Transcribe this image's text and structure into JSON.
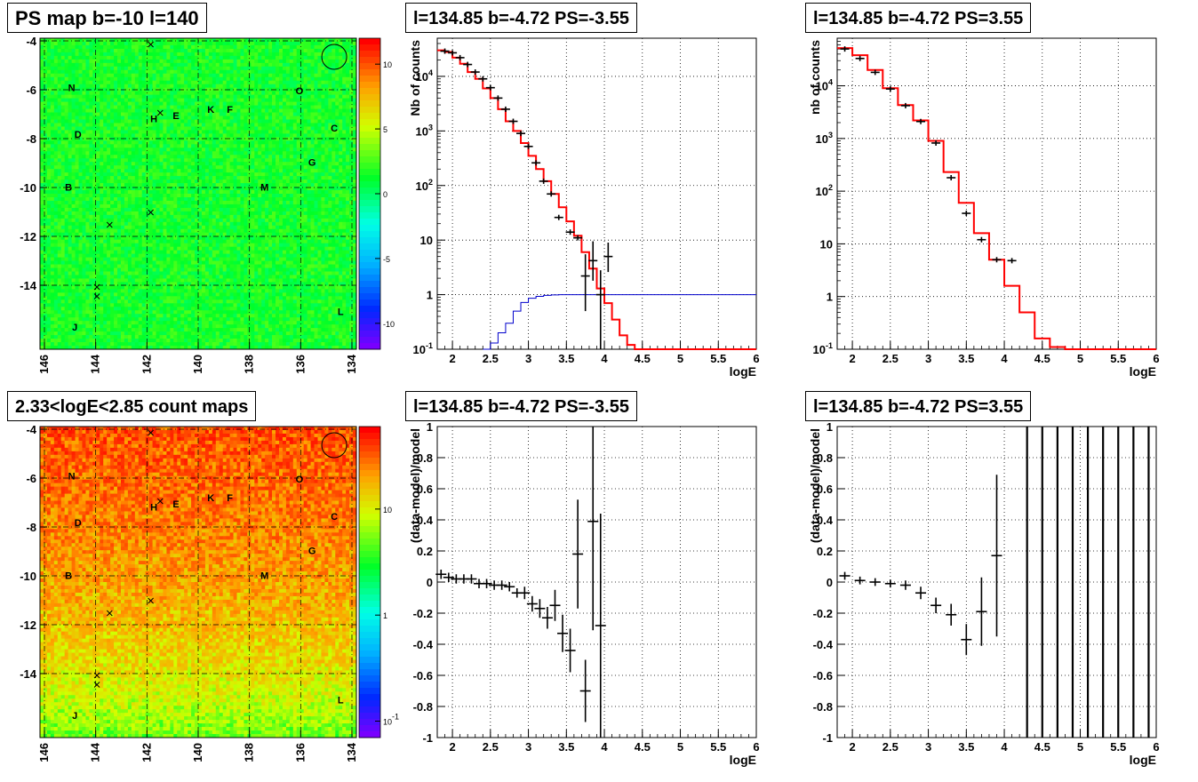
{
  "panels": [
    {
      "id": "ps-map",
      "title": "PS map b=-10 l=140",
      "type": "heatmap",
      "x_ticks": [
        "146",
        "144",
        "142",
        "140",
        "138",
        "136",
        "134"
      ],
      "y_ticks": [
        "-4",
        "-6",
        "-8",
        "-10",
        "-12",
        "-14"
      ],
      "colorbar": {
        "scale": "linear",
        "ticks": [
          "10",
          "5",
          "0",
          "-5",
          "-10"
        ]
      },
      "color_range": [
        -12,
        12
      ],
      "map_level": 1.5,
      "labels": [
        "N",
        "O",
        "H",
        "E",
        "K",
        "F",
        "D",
        "C",
        "G",
        "B",
        "M",
        "L",
        "J"
      ]
    },
    {
      "id": "spectrum-neg",
      "title": "l=134.85 b=-4.72 PS=-3.55",
      "type": "line",
      "xlabel": "logE",
      "ylabel": "Nb of counts",
      "x_ticks": [
        "2",
        "2.5",
        "3",
        "3.5",
        "4",
        "4.5",
        "5",
        "5.5",
        "6"
      ],
      "y_ticks": [
        "10^-1",
        "1",
        "10",
        "10^2",
        "10^3",
        "10^4"
      ],
      "xlim": [
        1.8,
        6
      ],
      "ylim": [
        0.1,
        50000
      ],
      "yscale": "log",
      "chart_data": {
        "type": "line",
        "model_step": {
          "edges": [
            1.8,
            1.9,
            2.0,
            2.1,
            2.2,
            2.3,
            2.4,
            2.5,
            2.6,
            2.7,
            2.8,
            2.9,
            3.0,
            3.1,
            3.2,
            3.3,
            3.4,
            3.5,
            3.6,
            3.7,
            3.8,
            3.9,
            4.0,
            4.1,
            4.2,
            4.3,
            4.4,
            6.0
          ],
          "values": [
            30000,
            28000,
            22000,
            17000,
            12000,
            9000,
            6000,
            4000,
            2500,
            1500,
            1000,
            600,
            350,
            200,
            120,
            70,
            40,
            22,
            12,
            6,
            3,
            1.3,
            0.7,
            0.35,
            0.18,
            0.12,
            0.1
          ]
        },
        "source_model": {
          "edges": [
            2.4,
            2.5,
            2.6,
            2.7,
            2.8,
            2.9,
            3.0,
            3.1,
            3.2,
            3.3,
            3.4,
            3.5,
            6.0
          ],
          "values": [
            0.1,
            0.13,
            0.2,
            0.3,
            0.5,
            0.72,
            0.86,
            0.93,
            0.97,
            0.99,
            1.0,
            1.0
          ]
        },
        "data_points": [
          {
            "x": 1.9,
            "y": 29000
          },
          {
            "x": 2.0,
            "y": 27000
          },
          {
            "x": 2.1,
            "y": 22000
          },
          {
            "x": 2.2,
            "y": 16500
          },
          {
            "x": 2.3,
            "y": 12000
          },
          {
            "x": 2.4,
            "y": 9000
          },
          {
            "x": 2.5,
            "y": 6200
          },
          {
            "x": 2.6,
            "y": 4000
          },
          {
            "x": 2.7,
            "y": 2500
          },
          {
            "x": 2.8,
            "y": 1500
          },
          {
            "x": 2.9,
            "y": 900
          },
          {
            "x": 3.0,
            "y": 520
          },
          {
            "x": 3.1,
            "y": 260
          },
          {
            "x": 3.2,
            "y": 120
          },
          {
            "x": 3.3,
            "y": 70
          },
          {
            "x": 3.4,
            "y": 26
          },
          {
            "x": 3.55,
            "y": 14
          },
          {
            "x": 3.65,
            "y": 11
          },
          {
            "x": 3.75,
            "y": 2.2,
            "lo": 0.5,
            "hi": 5.5
          },
          {
            "x": 3.85,
            "y": 4.2,
            "lo": 1.8,
            "hi": 9.5
          },
          {
            "x": 3.95,
            "y": 1.0,
            "lo": 0.1,
            "hi": 2.8
          },
          {
            "x": 4.05,
            "y": 5.0,
            "lo": 2.6,
            "hi": 9.0
          }
        ]
      }
    },
    {
      "id": "spectrum-pos",
      "title": "l=134.85 b=-4.72 PS=3.55",
      "type": "line",
      "xlabel": "logE",
      "ylabel": "nb of counts",
      "x_ticks": [
        "2",
        "2.5",
        "3",
        "3.5",
        "4",
        "4.5",
        "5",
        "5.5",
        "6"
      ],
      "y_ticks": [
        "10^-1",
        "1",
        "10",
        "10^2",
        "10^3",
        "10^4"
      ],
      "xlim": [
        1.8,
        6
      ],
      "ylim": [
        0.1,
        80000
      ],
      "yscale": "log",
      "chart_data": {
        "type": "line",
        "model_step": {
          "edges": [
            1.8,
            2.0,
            2.2,
            2.4,
            2.6,
            2.8,
            3.0,
            3.2,
            3.4,
            3.6,
            3.8,
            4.0,
            4.2,
            4.4,
            4.6,
            4.8,
            6.0
          ],
          "values": [
            52000,
            38000,
            20000,
            9000,
            4300,
            2200,
            900,
            230,
            60,
            16,
            5,
            1.6,
            0.5,
            0.16,
            0.11,
            0.1
          ]
        },
        "data_points": [
          {
            "x": 1.9,
            "y": 50000
          },
          {
            "x": 2.1,
            "y": 33000
          },
          {
            "x": 2.3,
            "y": 18000
          },
          {
            "x": 2.5,
            "y": 8700
          },
          {
            "x": 2.7,
            "y": 4200
          },
          {
            "x": 2.9,
            "y": 2100
          },
          {
            "x": 3.1,
            "y": 820
          },
          {
            "x": 3.3,
            "y": 180
          },
          {
            "x": 3.5,
            "y": 38
          },
          {
            "x": 3.7,
            "y": 12
          },
          {
            "x": 3.9,
            "y": 5.0
          },
          {
            "x": 4.1,
            "y": 4.8
          }
        ]
      }
    },
    {
      "id": "count-map",
      "title": "2.33<logE<2.85 count maps",
      "type": "heatmap",
      "x_ticks": [
        "146",
        "144",
        "142",
        "140",
        "138",
        "136",
        "134"
      ],
      "y_ticks": [
        "-4",
        "-6",
        "-8",
        "-10",
        "-12",
        "-14"
      ],
      "colorbar": {
        "scale": "log",
        "ticks": [
          "10",
          "1",
          "10^-1"
        ]
      },
      "color_range": [
        0.07,
        60
      ],
      "labels": [
        "N",
        "O",
        "H",
        "E",
        "K",
        "F",
        "D",
        "C",
        "G",
        "B",
        "M",
        "L",
        "J"
      ]
    },
    {
      "id": "residual-neg",
      "title": "l=134.85 b=-4.72 PS=-3.55",
      "type": "scatter",
      "xlabel": "logE",
      "ylabel": "(data-model)/model",
      "x_ticks": [
        "2",
        "2.5",
        "3",
        "3.5",
        "4",
        "4.5",
        "5",
        "5.5",
        "6"
      ],
      "y_ticks": [
        "-1",
        "-0.8",
        "-0.6",
        "-0.4",
        "-0.2",
        "0",
        "0.2",
        "0.4",
        "0.6",
        "0.8",
        "1"
      ],
      "xlim": [
        1.8,
        6
      ],
      "ylim": [
        -1,
        1
      ],
      "chart_data": {
        "type": "scatter",
        "points": [
          {
            "x": 1.85,
            "y": 0.05,
            "err": 0.03
          },
          {
            "x": 1.95,
            "y": 0.03,
            "err": 0.03
          },
          {
            "x": 2.05,
            "y": 0.02,
            "err": 0.03
          },
          {
            "x": 2.15,
            "y": 0.02,
            "err": 0.03
          },
          {
            "x": 2.25,
            "y": 0.02,
            "err": 0.03
          },
          {
            "x": 2.35,
            "y": -0.01,
            "err": 0.03
          },
          {
            "x": 2.45,
            "y": -0.01,
            "err": 0.03
          },
          {
            "x": 2.55,
            "y": -0.02,
            "err": 0.03
          },
          {
            "x": 2.65,
            "y": -0.02,
            "err": 0.03
          },
          {
            "x": 2.75,
            "y": -0.03,
            "err": 0.03
          },
          {
            "x": 2.85,
            "y": -0.07,
            "err": 0.03
          },
          {
            "x": 2.95,
            "y": -0.07,
            "err": 0.04
          },
          {
            "x": 3.05,
            "y": -0.14,
            "err": 0.05
          },
          {
            "x": 3.15,
            "y": -0.17,
            "err": 0.06
          },
          {
            "x": 3.25,
            "y": -0.23,
            "err": 0.07
          },
          {
            "x": 3.35,
            "y": -0.15,
            "err": 0.1
          },
          {
            "x": 3.45,
            "y": -0.33,
            "err": 0.12
          },
          {
            "x": 3.55,
            "y": -0.44,
            "err": 0.14
          },
          {
            "x": 3.65,
            "y": 0.18,
            "err": 0.35
          },
          {
            "x": 3.75,
            "y": -0.7,
            "err": 0.2
          },
          {
            "x": 3.85,
            "y": 0.39,
            "err": 0.7
          },
          {
            "x": 3.95,
            "y": -0.28,
            "err": 0.72
          }
        ]
      }
    },
    {
      "id": "residual-pos",
      "title": "l=134.85 b=-4.72 PS=3.55",
      "type": "scatter",
      "xlabel": "logE",
      "ylabel": "(data-model)/model",
      "x_ticks": [
        "2",
        "2.5",
        "3",
        "3.5",
        "4",
        "4.5",
        "5",
        "5.5",
        "6"
      ],
      "y_ticks": [
        "-1",
        "-0.8",
        "-0.6",
        "-0.4",
        "-0.2",
        "0",
        "0.2",
        "0.4",
        "0.6",
        "0.8",
        "1"
      ],
      "xlim": [
        1.8,
        6
      ],
      "ylim": [
        -1,
        1
      ],
      "chart_data": {
        "type": "scatter",
        "points": [
          {
            "x": 1.9,
            "y": 0.04,
            "err": 0.025
          },
          {
            "x": 2.1,
            "y": 0.01,
            "err": 0.025
          },
          {
            "x": 2.3,
            "y": 0.0,
            "err": 0.025
          },
          {
            "x": 2.5,
            "y": -0.01,
            "err": 0.025
          },
          {
            "x": 2.7,
            "y": -0.02,
            "err": 0.03
          },
          {
            "x": 2.9,
            "y": -0.07,
            "err": 0.04
          },
          {
            "x": 3.1,
            "y": -0.15,
            "err": 0.05
          },
          {
            "x": 3.3,
            "y": -0.21,
            "err": 0.07
          },
          {
            "x": 3.5,
            "y": -0.37,
            "err": 0.1
          },
          {
            "x": 3.7,
            "y": -0.19,
            "err": 0.22
          },
          {
            "x": 3.9,
            "y": 0.17,
            "err": 0.52
          }
        ],
        "full_range_bars_x": [
          4.3,
          4.5,
          4.7,
          4.9,
          5.1,
          5.3,
          5.5,
          5.7,
          5.9
        ]
      }
    }
  ]
}
